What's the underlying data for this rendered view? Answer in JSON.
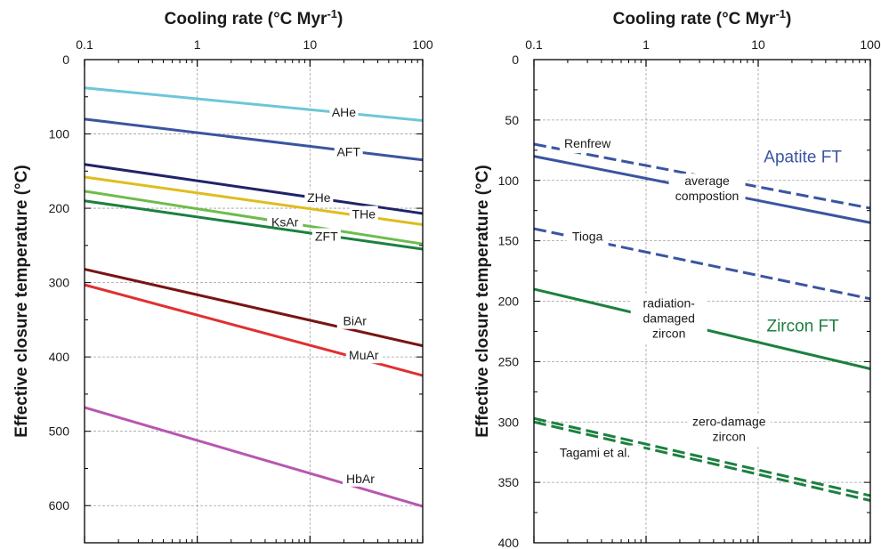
{
  "chart_data": [
    {
      "type": "line",
      "x_title": "Cooling rate (°C Myr",
      "x_title_sup": "-1",
      "x_title_end": ")",
      "ylabel": "Effective closure temperature (°C)",
      "x_scale": "log",
      "xlim": [
        0.1,
        100
      ],
      "ylim": [
        650,
        0
      ],
      "x_ticks": [
        0.1,
        1,
        10,
        100
      ],
      "x_tick_labels": [
        "0.1",
        "1",
        "10",
        "100"
      ],
      "y_ticks": [
        0,
        100,
        200,
        300,
        400,
        500,
        600
      ],
      "y_tick_labels": [
        "0",
        "100",
        "200",
        "300",
        "400",
        "500",
        "600"
      ],
      "grid": true,
      "series": [
        {
          "name": "AHe",
          "color": "#6ec6d8",
          "style": "solid",
          "x": [
            0.1,
            100
          ],
          "y": [
            38,
            82
          ],
          "label_x": 20,
          "label_y": 73
        },
        {
          "name": "AFT",
          "color": "#3a55a0",
          "style": "solid",
          "x": [
            0.1,
            100
          ],
          "y": [
            80,
            135
          ],
          "label_x": 22,
          "label_y": 126
        },
        {
          "name": "ZHe",
          "color": "#1f2468",
          "style": "solid",
          "x": [
            0.1,
            100
          ],
          "y": [
            141,
            207
          ],
          "label_x": 12,
          "label_y": 188
        },
        {
          "name": "THe",
          "color": "#e0bc1c",
          "style": "solid",
          "x": [
            0.1,
            100
          ],
          "y": [
            158,
            222
          ],
          "label_x": 30,
          "label_y": 210
        },
        {
          "name": "KsAr",
          "color": "#6ebc4c",
          "style": "solid",
          "x": [
            0.1,
            100
          ],
          "y": [
            177,
            248
          ],
          "label_x": 6,
          "label_y": 221
        },
        {
          "name": "ZFT",
          "color": "#1c8040",
          "style": "solid",
          "x": [
            0.1,
            100
          ],
          "y": [
            190,
            255
          ],
          "label_x": 14,
          "label_y": 240
        },
        {
          "name": "BiAr",
          "color": "#7a1414",
          "style": "solid",
          "x": [
            0.1,
            100
          ],
          "y": [
            282,
            385
          ],
          "label_x": 25,
          "label_y": 354
        },
        {
          "name": "MuAr",
          "color": "#e03030",
          "style": "solid",
          "x": [
            0.1,
            100
          ],
          "y": [
            303,
            425
          ],
          "label_x": 30,
          "label_y": 400
        },
        {
          "name": "HbAr",
          "color": "#b857b0",
          "style": "solid",
          "x": [
            0.1,
            100
          ],
          "y": [
            468,
            601
          ],
          "label_x": 28,
          "label_y": 566
        }
      ]
    },
    {
      "type": "line",
      "x_title": "Cooling rate (°C Myr",
      "x_title_sup": "-1",
      "x_title_end": ")",
      "ylabel": "Effective closure temperature (°C)",
      "x_scale": "log",
      "xlim": [
        0.1,
        100
      ],
      "ylim": [
        400,
        0
      ],
      "x_ticks": [
        0.1,
        1,
        10,
        100
      ],
      "x_tick_labels": [
        "0.1",
        "1",
        "10",
        "100"
      ],
      "y_ticks": [
        0,
        50,
        100,
        150,
        200,
        250,
        300,
        350,
        400
      ],
      "y_tick_labels": [
        "0",
        "50",
        "100",
        "150",
        "200",
        "250",
        "300",
        "350",
        "400"
      ],
      "grid": true,
      "series": [
        {
          "color": "#3a55a0",
          "style": "dashed",
          "x": [
            0.1,
            100
          ],
          "y": [
            70,
            123
          ]
        },
        {
          "color": "#3a55a0",
          "style": "solid",
          "x": [
            0.1,
            100
          ],
          "y": [
            80,
            135
          ]
        },
        {
          "color": "#3a55a0",
          "style": "dashed",
          "x": [
            0.1,
            100
          ],
          "y": [
            140,
            198
          ]
        },
        {
          "color": "#1c8040",
          "style": "solid",
          "x": [
            0.1,
            100
          ],
          "y": [
            190,
            256
          ]
        },
        {
          "color": "#1c8040",
          "style": "dashed",
          "x": [
            0.1,
            100
          ],
          "y": [
            297,
            361
          ]
        },
        {
          "color": "#1c8040",
          "style": "dashed",
          "x": [
            0.1,
            100
          ],
          "y": [
            300,
            365
          ]
        }
      ],
      "annotations": [
        {
          "text": "Renfrew",
          "lines": [
            "Renfrew"
          ],
          "x": 0.3,
          "y": 73,
          "anchor": "middle"
        },
        {
          "text": "average compostion",
          "lines": [
            "average",
            "compostion"
          ],
          "x": 3.5,
          "y": 104,
          "anchor": "middle"
        },
        {
          "text": "Tioga",
          "lines": [
            "Tioga"
          ],
          "x": 0.3,
          "y": 150,
          "anchor": "middle"
        },
        {
          "text": "radiation-damaged zircon",
          "lines": [
            "radiation-",
            "damaged",
            "zircon"
          ],
          "x": 1.6,
          "y": 205,
          "anchor": "middle"
        },
        {
          "text": "zero-damage zircon",
          "lines": [
            "zero-damage",
            "zircon"
          ],
          "x": 5.5,
          "y": 303,
          "anchor": "middle"
        },
        {
          "text": "Tagami et al.",
          "lines": [
            "Tagami et al."
          ],
          "x": 0.35,
          "y": 329,
          "anchor": "middle"
        }
      ],
      "group_labels": [
        {
          "text": "Apatite FT",
          "color": "#3a55a0",
          "x": 25,
          "y": 80
        },
        {
          "text": "Zircon FT",
          "color": "#1c8040",
          "x": 25,
          "y": 220
        }
      ]
    }
  ]
}
